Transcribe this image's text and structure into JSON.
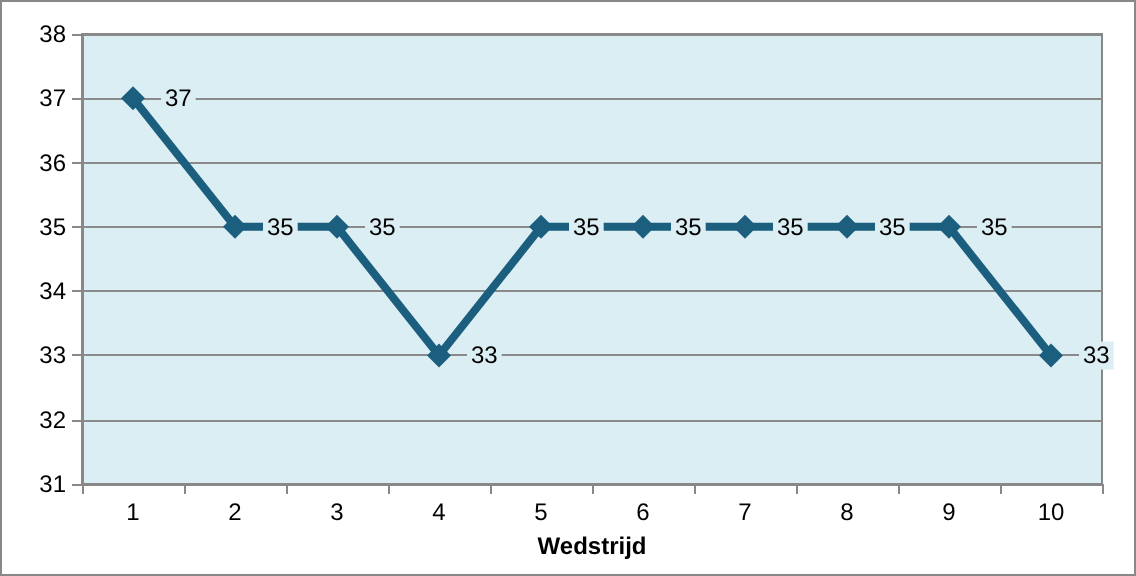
{
  "chart_data": {
    "type": "line",
    "xlabel": "Wedstrijd",
    "categories": [
      "1",
      "2",
      "3",
      "4",
      "5",
      "6",
      "7",
      "8",
      "9",
      "10"
    ],
    "series": [
      {
        "color": "#1b5e7e",
        "values": [
          37,
          35,
          35,
          33,
          35,
          35,
          35,
          35,
          35,
          33
        ]
      }
    ],
    "ylim": [
      31,
      38
    ],
    "yticks": [
      31,
      32,
      33,
      34,
      35,
      36,
      37,
      38
    ],
    "grid": "y",
    "marker": "diamond",
    "line_style": "solid",
    "data_labels": true
  }
}
